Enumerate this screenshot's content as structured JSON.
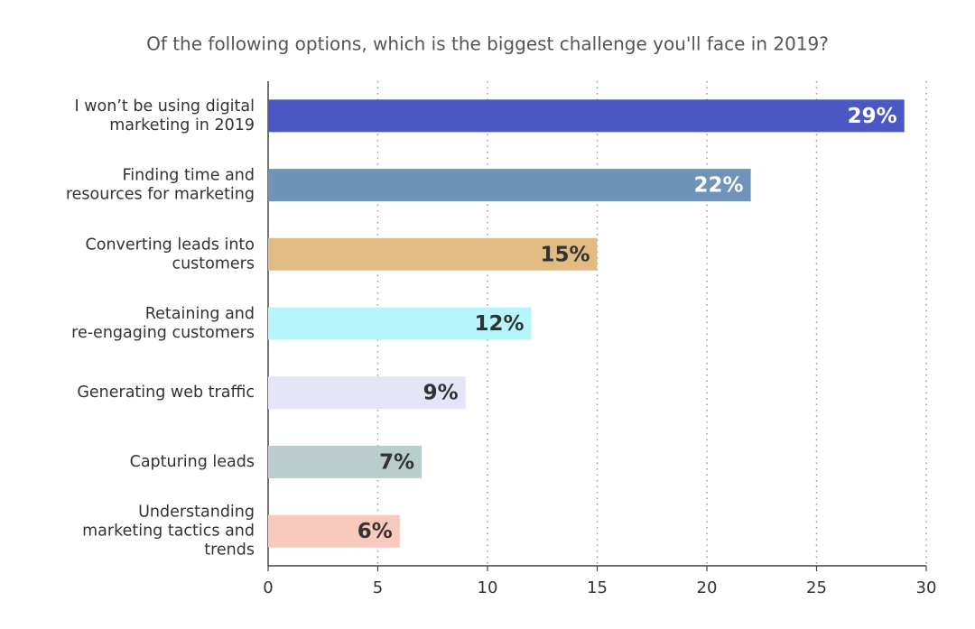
{
  "chart_data": {
    "type": "bar",
    "orientation": "horizontal",
    "title": "Of the following options, which is the biggest challenge you'll face in 2019?",
    "categories": [
      [
        "I won’t be using digital",
        "marketing in 2019"
      ],
      [
        "Finding time and",
        "resources for marketing"
      ],
      [
        "Converting leads into",
        "customers"
      ],
      [
        "Retaining and",
        "re-engaging customers"
      ],
      [
        "Generating web traffic"
      ],
      [
        "Capturing leads"
      ],
      [
        "Understanding",
        "marketing tactics and",
        "trends"
      ]
    ],
    "values": [
      29,
      22,
      15,
      12,
      9,
      7,
      6
    ],
    "value_labels": [
      "29%",
      "22%",
      "15%",
      "12%",
      "9%",
      "7%",
      "6%"
    ],
    "colors": [
      "#4a57c5",
      "#7094b9",
      "#e1bb84",
      "#b6f6fb",
      "#e5e5f8",
      "#b8cdcc",
      "#f8cabd"
    ],
    "xlim": [
      0,
      30
    ],
    "xticks": [
      0,
      5,
      10,
      15,
      20,
      25,
      30
    ],
    "grid": true
  }
}
